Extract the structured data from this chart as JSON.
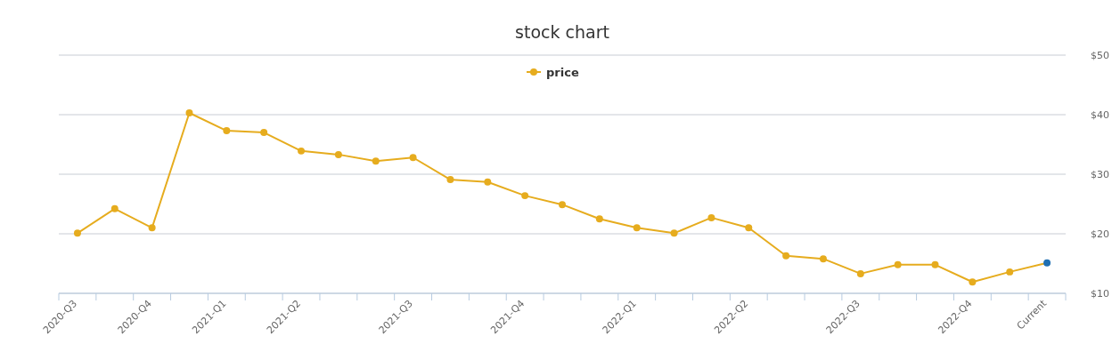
{
  "chart_data": {
    "type": "line",
    "title": "stock chart",
    "categories": [
      "2020-Q3",
      null,
      "2020-Q4",
      null,
      "2021-Q1",
      null,
      "2021-Q2",
      null,
      null,
      "2021-Q3",
      null,
      null,
      "2021-Q4",
      null,
      null,
      "2022-Q1",
      null,
      null,
      "2022-Q2",
      null,
      null,
      "2022-Q3",
      null,
      null,
      "2022-Q4",
      null,
      "Current"
    ],
    "series": [
      {
        "name": "price",
        "color": "#e6ac1e",
        "colors": [
          "#e6ac1e",
          "#e6ac1e",
          "#e6ac1e",
          "#e6ac1e",
          "#e6ac1e",
          "#e6ac1e",
          "#e6ac1e",
          "#e6ac1e",
          "#e6ac1e",
          "#e6ac1e",
          "#e6ac1e",
          "#e6ac1e",
          "#e6ac1e",
          "#e6ac1e",
          "#e6ac1e",
          "#e6ac1e",
          "#e6ac1e",
          "#e6ac1e",
          "#e6ac1e",
          "#e6ac1e",
          "#e6ac1e",
          "#e6ac1e",
          "#e6ac1e",
          "#e6ac1e",
          "#e6ac1e",
          "#e6ac1e",
          "#1f6fb2"
        ],
        "values": [
          20.1,
          24.2,
          21.0,
          40.3,
          37.3,
          37.0,
          33.9,
          33.3,
          32.2,
          32.8,
          29.1,
          28.7,
          26.4,
          24.9,
          22.5,
          21.0,
          20.1,
          22.7,
          21.0,
          16.3,
          15.8,
          13.3,
          14.8,
          14.8,
          11.9,
          13.6,
          15.1
        ]
      }
    ],
    "ylim": [
      10,
      50
    ],
    "yticks": [
      {
        "value": 10,
        "label": "$10"
      },
      {
        "value": 20,
        "label": "$20"
      },
      {
        "value": 30,
        "label": "$30"
      },
      {
        "value": 40,
        "label": "$40"
      },
      {
        "value": 50,
        "label": "$50"
      }
    ],
    "grid": "y",
    "legend": "top",
    "marker": "circle",
    "line_style": "solid"
  }
}
